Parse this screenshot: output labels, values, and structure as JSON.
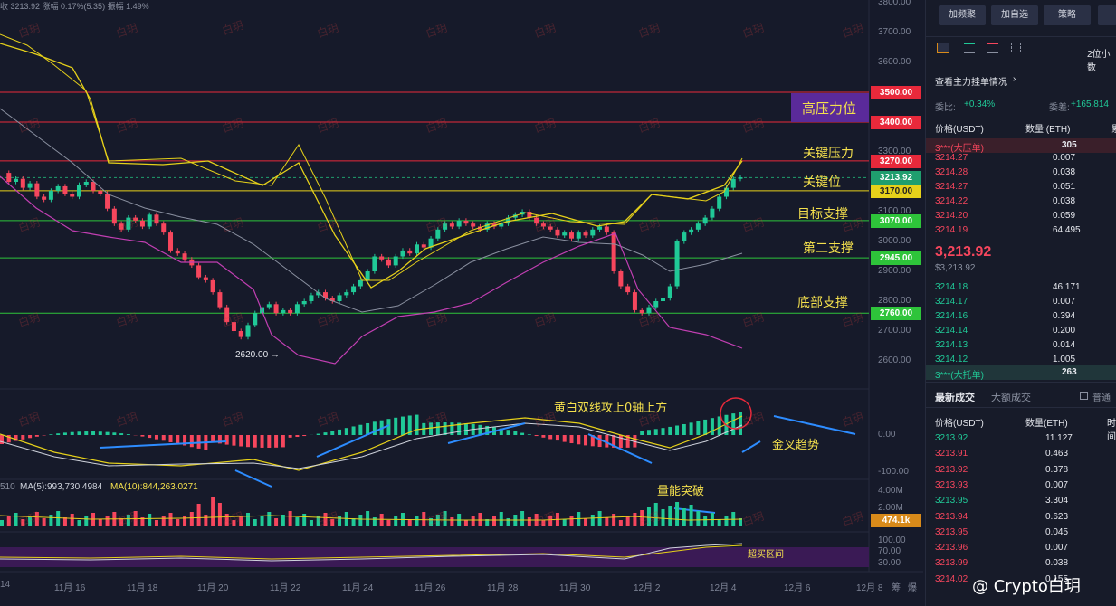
{
  "header_info": "收 3213.92  涨幅 0.17%(5.35)  振幅 1.49%",
  "watermark_text": "白玥",
  "price_axis": [
    "3800.00",
    "3700.00",
    "3600.00",
    "3500.00",
    "3400.00",
    "3300.00",
    "3200.00",
    "3100.00",
    "3000.00",
    "2900.00",
    "2800.00",
    "2700.00",
    "2600.00"
  ],
  "level_tags": [
    {
      "text": "3500.00",
      "color": "#e8293b"
    },
    {
      "text": "3400.00",
      "color": "#e8293b"
    },
    {
      "text": "3270.00",
      "color": "#e8293b"
    },
    {
      "text": "3213.92",
      "color": "#1f9e6e"
    },
    {
      "text": "3170.00",
      "color": "#e6d11a"
    },
    {
      "text": "3070.00",
      "color": "#2ec43a"
    },
    {
      "text": "2945.00",
      "color": "#2ec43a"
    },
    {
      "text": "2760.00",
      "color": "#2ec43a"
    }
  ],
  "level_labels": {
    "high": "高压力位",
    "key_pressure": "关键压力",
    "key_level": "关键位",
    "target_support": "目标支撑",
    "second_support": "第二支撑",
    "bottom_support": "底部支撑"
  },
  "low_marker": "2620.00 →",
  "macd_annotation": "黄白双线攻上0轴上方",
  "golden_cross": "金叉趋势",
  "volume_break": "量能突破",
  "overbought": "超买区间",
  "macd_axis": [
    "0.00",
    "-100.00"
  ],
  "volume_axis": [
    "4.00M",
    "2.00M"
  ],
  "volume_tag": "474.1k",
  "rsi_axis": [
    "100.00",
    "70.00",
    "30.00"
  ],
  "ma_text": {
    "prefix": "510",
    "ma5": "MA(5):993,730.4984",
    "ma10": "MA(10):844,263.0271"
  },
  "dates": [
    "14",
    "11月 16",
    "11月 18",
    "11月 20",
    "11月 22",
    "11月 24",
    "11月 26",
    "11月 28",
    "11月 30",
    "12月 2",
    "12月 4",
    "12月 6",
    "12月 8"
  ],
  "date_suffix": [
    "筹",
    "爆"
  ],
  "panel": {
    "buttons": [
      "加频聚",
      "加自选",
      "策略"
    ],
    "precision": "2位小数",
    "orderbook_link": "查看主力挂单情况",
    "ratio_label": "委比:",
    "ratio_value": "+0.34%",
    "diff_label": "委差:",
    "diff_value": "+165.814",
    "col_price": "价格(USDT)",
    "col_qty": "数量 (ETH)",
    "col_more": "累",
    "big_ask": {
      "label": "3***(大压单)",
      "qty": "305"
    },
    "asks": [
      {
        "p": "3214.27",
        "q": "0.007"
      },
      {
        "p": "3214.28",
        "q": "0.038"
      },
      {
        "p": "3214.27",
        "q": "0.051"
      },
      {
        "p": "3214.22",
        "q": "0.038"
      },
      {
        "p": "3214.20",
        "q": "0.059"
      },
      {
        "p": "3214.19",
        "q": "64.495"
      }
    ],
    "last_price": "3,213.92",
    "last_price_sub": "$3,213.92",
    "bids": [
      {
        "p": "3214.18",
        "q": "46.171"
      },
      {
        "p": "3214.17",
        "q": "0.007"
      },
      {
        "p": "3214.16",
        "q": "0.394"
      },
      {
        "p": "3214.14",
        "q": "0.200"
      },
      {
        "p": "3214.13",
        "q": "0.014"
      },
      {
        "p": "3214.12",
        "q": "1.005"
      }
    ],
    "big_bid": {
      "label": "3***(大托单)",
      "qty": "263"
    },
    "tab_latest": "最新成交",
    "tab_big": "大额成交",
    "normal_label": "普通",
    "trade_col_price": "价格(USDT)",
    "trade_col_qty": "数量(ETH)",
    "trade_col_time": "时间",
    "trades": [
      {
        "p": "3213.92",
        "q": "11.127",
        "c": "green"
      },
      {
        "p": "3213.91",
        "q": "0.463",
        "c": "red"
      },
      {
        "p": "3213.92",
        "q": "0.378",
        "c": "red"
      },
      {
        "p": "3213.93",
        "q": "0.007",
        "c": "red"
      },
      {
        "p": "3213.95",
        "q": "3.304",
        "c": "green"
      },
      {
        "p": "3213.94",
        "q": "0.623",
        "c": "red"
      },
      {
        "p": "3213.95",
        "q": "0.045",
        "c": "red"
      },
      {
        "p": "3213.96",
        "q": "0.007",
        "c": "red"
      },
      {
        "p": "3213.99",
        "q": "0.038",
        "c": "red"
      },
      {
        "p": "3214.02",
        "q": "0.155",
        "c": "red"
      }
    ]
  },
  "brand": "@ Crypto白玥"
}
